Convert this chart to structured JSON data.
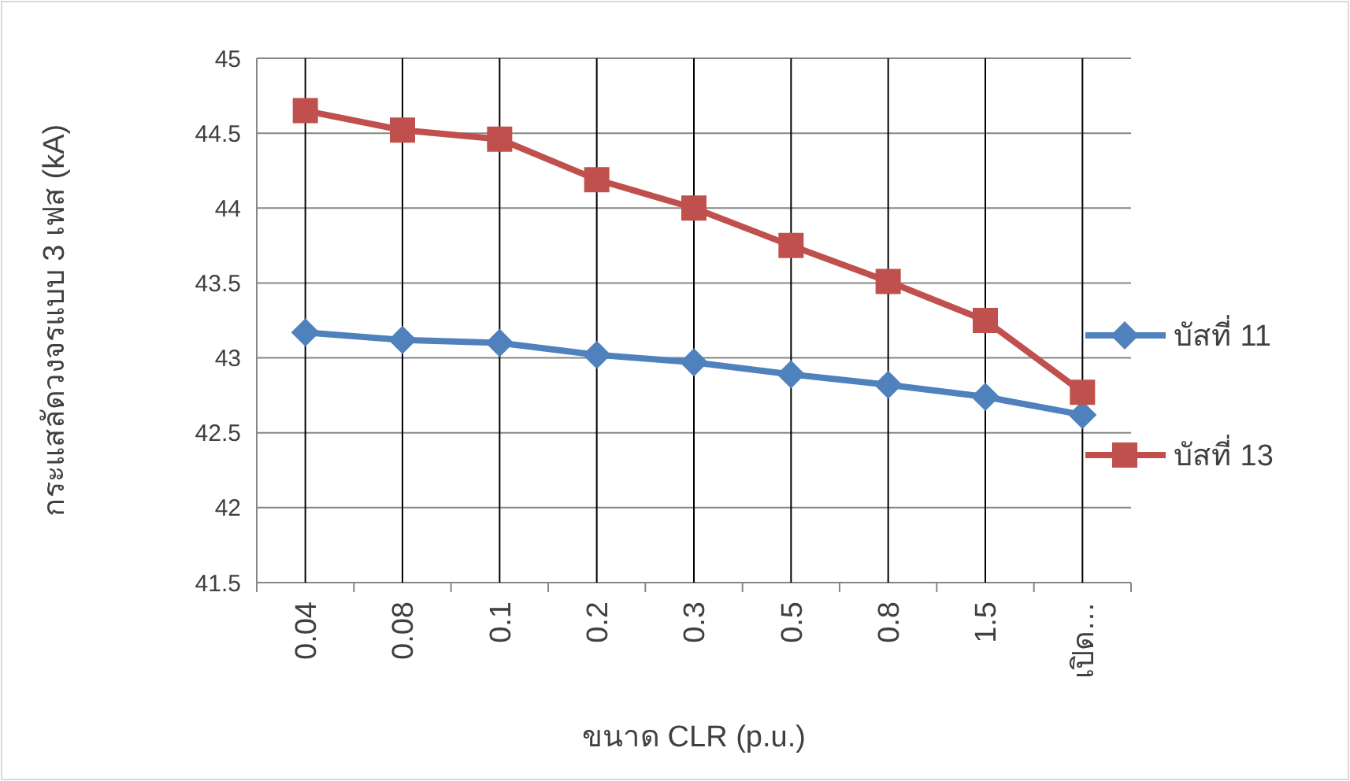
{
  "chart_data": {
    "type": "line",
    "ylabel": "กระแสลัดวงจรแบบ 3 เฟส (kA)",
    "xlabel": "ขนาด CLR (p.u.)",
    "categories": [
      "0.04",
      "0.08",
      "0.1",
      "0.2",
      "0.3",
      "0.5",
      "0.8",
      "1.5",
      "เปิด…"
    ],
    "series": [
      {
        "name": "บัสที่ 11",
        "color": "#4f81bd",
        "marker": "diamond",
        "values": [
          43.17,
          43.12,
          43.1,
          43.02,
          42.97,
          42.89,
          42.82,
          42.74,
          42.62
        ]
      },
      {
        "name": "บัสที่ 13",
        "color": "#c0504d",
        "marker": "square",
        "values": [
          44.65,
          44.52,
          44.46,
          44.19,
          44.0,
          43.75,
          43.51,
          43.25,
          42.77
        ]
      }
    ],
    "ylim": [
      41.5,
      45
    ],
    "yticks": [
      {
        "value": 41.5,
        "label": "41.5"
      },
      42,
      {
        "value": 42.5,
        "label": "42.5"
      },
      43,
      {
        "value": 43.5,
        "label": "43.5"
      },
      44,
      {
        "value": 44.5,
        "label": "44.5"
      },
      45
    ],
    "grid": true,
    "legend": "right"
  }
}
